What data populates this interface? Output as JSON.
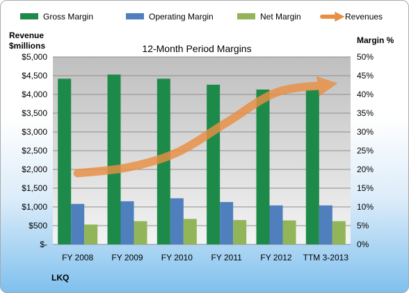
{
  "chart_data": {
    "type": "bar",
    "title": "12-Month Period Margins",
    "ylabel_left": "Revenue\n$millions",
    "ylabel_right": "Margin %",
    "company": "LKQ",
    "categories": [
      "FY 2008",
      "FY 2009",
      "FY 2010",
      "FY 2011",
      "FY 2012",
      "TTM 3-2013"
    ],
    "left_axis": {
      "min": 0,
      "max": 5000,
      "step": 500,
      "tick_labels": [
        "$-",
        "$500",
        "$1,000",
        "$1,500",
        "$2,000",
        "$2,500",
        "$3,000",
        "$3,500",
        "$4,000",
        "$4,500",
        "$5,000"
      ]
    },
    "right_axis": {
      "min": 0,
      "max": 50,
      "step": 5,
      "tick_labels": [
        "0%",
        "5%",
        "10%",
        "15%",
        "20%",
        "25%",
        "30%",
        "35%",
        "40%",
        "45%",
        "50%"
      ]
    },
    "series": [
      {
        "name": "Gross Margin",
        "type": "bar",
        "axis": "right",
        "color": "#1e8a4a",
        "values": [
          44.2,
          45.3,
          44.2,
          42.6,
          41.3,
          41.2
        ]
      },
      {
        "name": "Operating Margin",
        "type": "bar",
        "axis": "right",
        "color": "#4f7fbd",
        "values": [
          10.8,
          11.5,
          12.3,
          11.3,
          10.4,
          10.4
        ]
      },
      {
        "name": "Net Margin",
        "type": "bar",
        "axis": "right",
        "color": "#93b55a",
        "values": [
          5.3,
          6.2,
          6.8,
          6.5,
          6.4,
          6.2
        ]
      },
      {
        "name": "Revenues",
        "type": "line",
        "axis": "left",
        "color": "#e98f43",
        "values": [
          1900,
          2050,
          2450,
          3250,
          4050,
          4250
        ]
      }
    ],
    "grid": true,
    "legend": "top"
  }
}
